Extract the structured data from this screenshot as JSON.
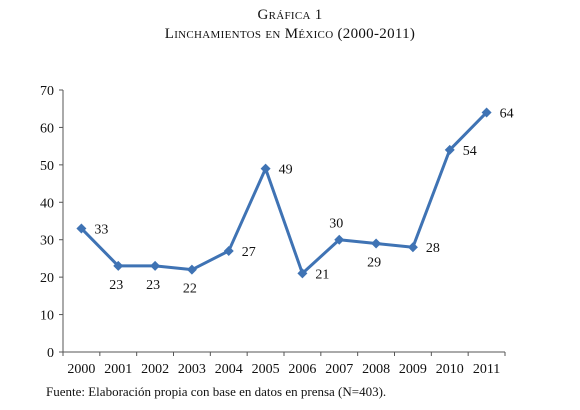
{
  "figure": {
    "title_line1": "Gráfica 1",
    "title_line2": "Linchamientos en México (2000-2011)",
    "source": "Fuente: Elaboración propia con base en datos en prensa (N=403)."
  },
  "chart_data": {
    "type": "line",
    "title": "Linchamientos en México (2000-2011)",
    "xlabel": "",
    "ylabel": "",
    "categories": [
      "2000",
      "2001",
      "2002",
      "2003",
      "2004",
      "2005",
      "2006",
      "2007",
      "2008",
      "2009",
      "2010",
      "2011"
    ],
    "series": [
      {
        "values": [
          33,
          23,
          23,
          22,
          27,
          49,
          21,
          30,
          29,
          28,
          54,
          64
        ],
        "color": "#3f73b4"
      }
    ],
    "data_labels": [
      "33",
      "23",
      "23",
      "22",
      "27",
      "49",
      "21",
      "30",
      "29",
      "28",
      "54",
      "64"
    ],
    "ylim": [
      0,
      70
    ],
    "yticks": [
      0,
      10,
      20,
      30,
      40,
      50,
      60,
      70
    ],
    "marker": "diamond",
    "grid": false,
    "legend": "none"
  }
}
